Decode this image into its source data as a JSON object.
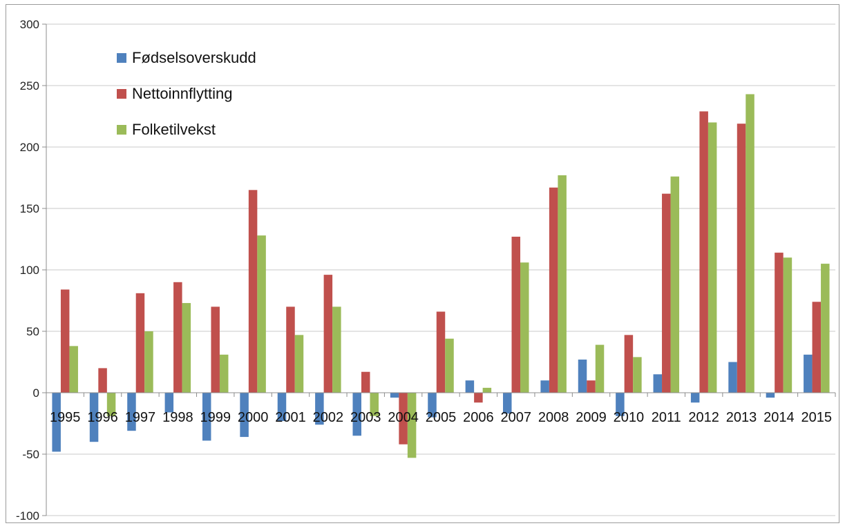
{
  "chart_data": {
    "type": "bar",
    "title": "",
    "xlabel": "",
    "ylabel": "",
    "ylim": [
      -100,
      300
    ],
    "yticks": [
      -100,
      -50,
      0,
      50,
      100,
      150,
      200,
      250,
      300
    ],
    "grid": true,
    "legend_position": "top-left",
    "categories": [
      "1995",
      "1996",
      "1997",
      "1998",
      "1999",
      "2000",
      "2001",
      "2002",
      "2003",
      "2004",
      "2005",
      "2006",
      "2007",
      "2008",
      "2009",
      "2010",
      "2011",
      "2012",
      "2013",
      "2014",
      "2015"
    ],
    "series": [
      {
        "name": "Fødselsoverskudd",
        "color": "#4f81bd",
        "values": [
          -48,
          -40,
          -31,
          -16,
          -39,
          -36,
          -23,
          -26,
          -35,
          -4,
          -20,
          10,
          -17,
          10,
          27,
          -19,
          15,
          -8,
          25,
          -4,
          31
        ]
      },
      {
        "name": "Nettoinnflytting",
        "color": "#c0504d",
        "values": [
          84,
          20,
          81,
          90,
          70,
          165,
          70,
          96,
          17,
          -42,
          66,
          -8,
          127,
          167,
          10,
          47,
          162,
          229,
          219,
          114,
          74
        ]
      },
      {
        "name": "Folketilvekst",
        "color": "#9bbb59",
        "values": [
          38,
          -19,
          50,
          73,
          31,
          128,
          47,
          70,
          -19,
          -53,
          44,
          4,
          106,
          177,
          39,
          29,
          176,
          220,
          243,
          110,
          105
        ]
      }
    ]
  }
}
